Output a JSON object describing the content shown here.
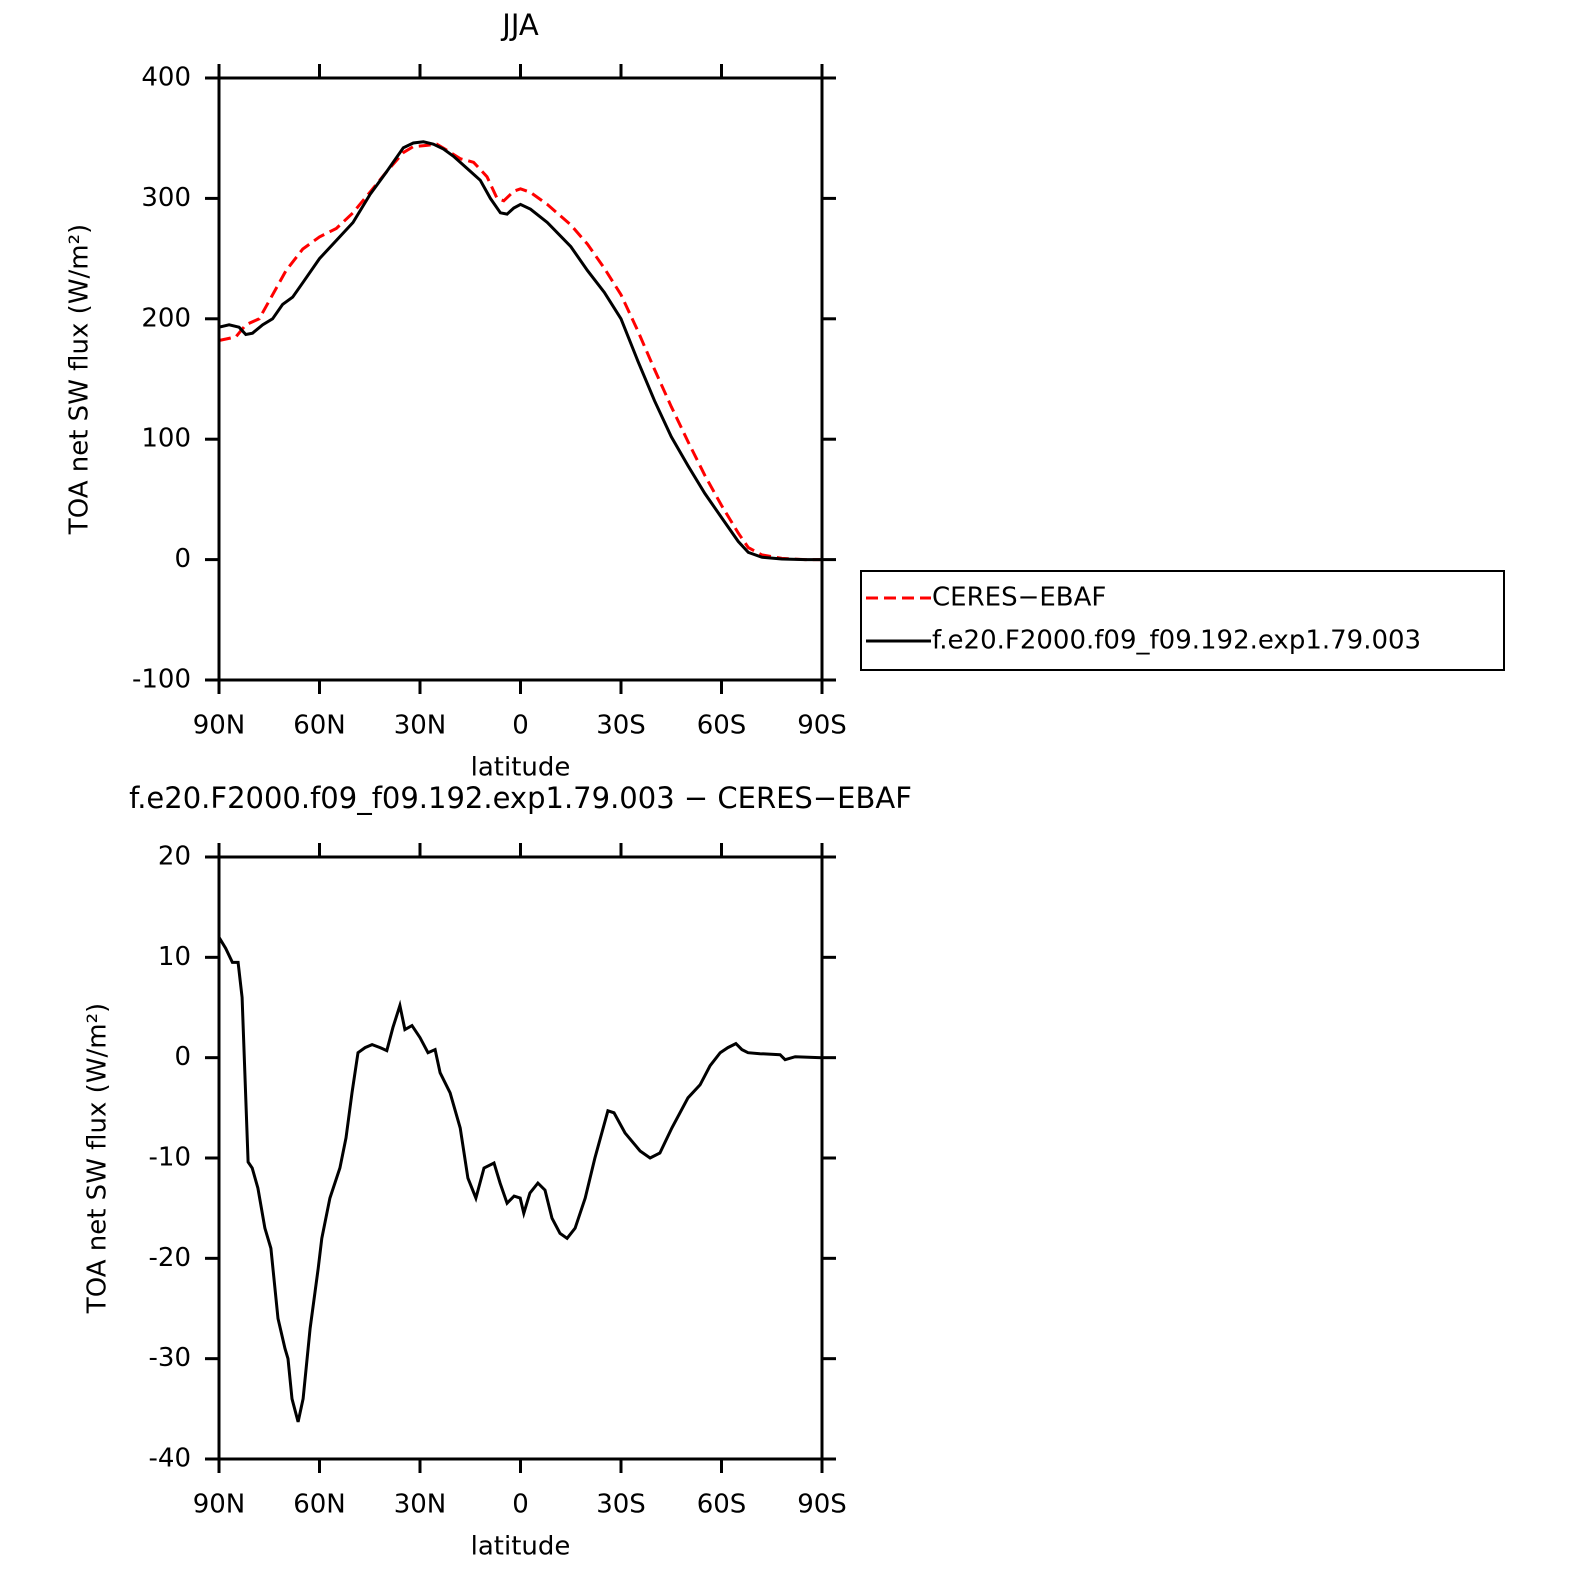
{
  "chart_data": [
    {
      "type": "line",
      "title": "JJA",
      "xlabel": "latitude",
      "ylabel": "TOA net SW flux (W/m²)",
      "xlim": [
        90,
        -90
      ],
      "xticks": [
        {
          "value": 90,
          "label": "90N"
        },
        {
          "value": 60,
          "label": "60N"
        },
        {
          "value": 30,
          "label": "30N"
        },
        0,
        {
          "value": -30,
          "label": "30S"
        },
        {
          "value": -60,
          "label": "60S"
        },
        {
          "value": -90,
          "label": "90S"
        }
      ],
      "ylim": [
        -100,
        400
      ],
      "yticks": [
        -100,
        0,
        100,
        200,
        300,
        400
      ],
      "legend": "right",
      "series": [
        {
          "name": "CERES−EBAF",
          "color": "#ff0000",
          "style": "dashed",
          "x": [
            90,
            85,
            82,
            78,
            75,
            70,
            65,
            60,
            55,
            50,
            45,
            40,
            35,
            32,
            28,
            25,
            22,
            18,
            14,
            10,
            7,
            5,
            2,
            0,
            -3,
            -8,
            -15,
            -20,
            -25,
            -30,
            -35,
            -40,
            -45,
            -50,
            -55,
            -60,
            -65,
            -68,
            -72,
            -78,
            -85,
            -90
          ],
          "values": [
            182,
            185,
            195,
            200,
            215,
            240,
            258,
            268,
            275,
            288,
            305,
            322,
            338,
            343,
            344,
            345,
            340,
            333,
            330,
            318,
            300,
            298,
            306,
            308,
            305,
            295,
            278,
            262,
            242,
            220,
            190,
            158,
            127,
            98,
            70,
            45,
            22,
            10,
            4,
            1,
            0,
            0
          ]
        },
        {
          "name": "f.e20.F2000.f09_f09.192.exp1.79.003",
          "color": "#000000",
          "style": "solid",
          "x": [
            90,
            87,
            84,
            82,
            80,
            77,
            74,
            71,
            68,
            65,
            60,
            55,
            50,
            45,
            40,
            35,
            32,
            29,
            26,
            23,
            20,
            16,
            12,
            9,
            6,
            4,
            2,
            0,
            -3,
            -8,
            -15,
            -20,
            -25,
            -30,
            -35,
            -40,
            -45,
            -50,
            -55,
            -60,
            -65,
            -68,
            -72,
            -78,
            -85,
            -90
          ],
          "values": [
            193,
            195,
            193,
            187,
            188,
            195,
            200,
            212,
            218,
            230,
            250,
            265,
            280,
            303,
            322,
            342,
            346,
            347,
            345,
            341,
            335,
            325,
            315,
            300,
            288,
            287,
            292,
            295,
            291,
            280,
            260,
            240,
            222,
            200,
            165,
            132,
            102,
            78,
            55,
            35,
            15,
            6,
            2,
            0.5,
            0,
            0
          ]
        }
      ]
    },
    {
      "type": "line",
      "title": "f.e20.F2000.f09_f09.192.exp1.79.003 − CERES−EBAF",
      "xlabel": "latitude",
      "ylabel": "TOA net SW flux (W/m²)",
      "xlim": [
        90,
        -90
      ],
      "xticks": [
        {
          "value": 90,
          "label": "90N"
        },
        {
          "value": 60,
          "label": "60N"
        },
        {
          "value": 30,
          "label": "30N"
        },
        0,
        {
          "value": -30,
          "label": "30S"
        },
        {
          "value": -60,
          "label": "60S"
        },
        {
          "value": -90,
          "label": "90S"
        }
      ],
      "ylim": [
        -40,
        20
      ],
      "yticks": [
        -40,
        -30,
        -20,
        -10,
        0,
        10,
        20
      ],
      "series": [
        {
          "color": "#000000",
          "style": "solid",
          "x": [
            90,
            88,
            86,
            84.3,
            83.1,
            81.3,
            80.1,
            78.4,
            76.3,
            74.5,
            72.4,
            70.3,
            69.4,
            68.2,
            66.4,
            64.9,
            62.8,
            60.4,
            59.3,
            56.9,
            53.9,
            52.1,
            50.3,
            48.5,
            46.4,
            44.3,
            41.9,
            39.9,
            38.1,
            36,
            34.5,
            32.4,
            30,
            27.6,
            25.5,
            24,
            21,
            18,
            15.7,
            13.3,
            10.9,
            7.9,
            6.1,
            4,
            1.9,
            0.1,
            -1,
            -2.8,
            -5.2,
            -7.3,
            -9.4,
            -11.8,
            -13.9,
            -16.3,
            -19.3,
            -22.2,
            -26.1,
            -27.9,
            -31.2,
            -35.7,
            -38.7,
            -41.6,
            -45.2,
            -50,
            -53.6,
            -56.6,
            -59.6,
            -61.9,
            -64.3,
            -66.1,
            -67.9,
            -71.5,
            -77.5,
            -79,
            -82,
            -90
          ],
          "values": [
            12,
            10.9,
            9.5,
            9.5,
            6,
            -10.4,
            -11,
            -13,
            -17,
            -19,
            -26,
            -29,
            -30,
            -34,
            -36.3,
            -34,
            -27,
            -21,
            -18,
            -14,
            -11,
            -8,
            -3.5,
            0.5,
            1,
            1.3,
            1,
            0.7,
            3,
            5.2,
            2.8,
            3.2,
            2,
            0.5,
            0.8,
            -1.5,
            -3.5,
            -7,
            -12,
            -14,
            -11,
            -10.5,
            -12.5,
            -14.5,
            -13.8,
            -14,
            -15.5,
            -13.5,
            -12.5,
            -13.2,
            -16,
            -17.5,
            -18,
            -17,
            -14,
            -10,
            -5.3,
            -5.5,
            -7.5,
            -9.3,
            -10,
            -9.5,
            -7,
            -4,
            -2.7,
            -0.8,
            0.5,
            1,
            1.4,
            0.8,
            0.5,
            0.4,
            0.3,
            -0.2,
            0.1,
            0
          ]
        }
      ]
    }
  ]
}
